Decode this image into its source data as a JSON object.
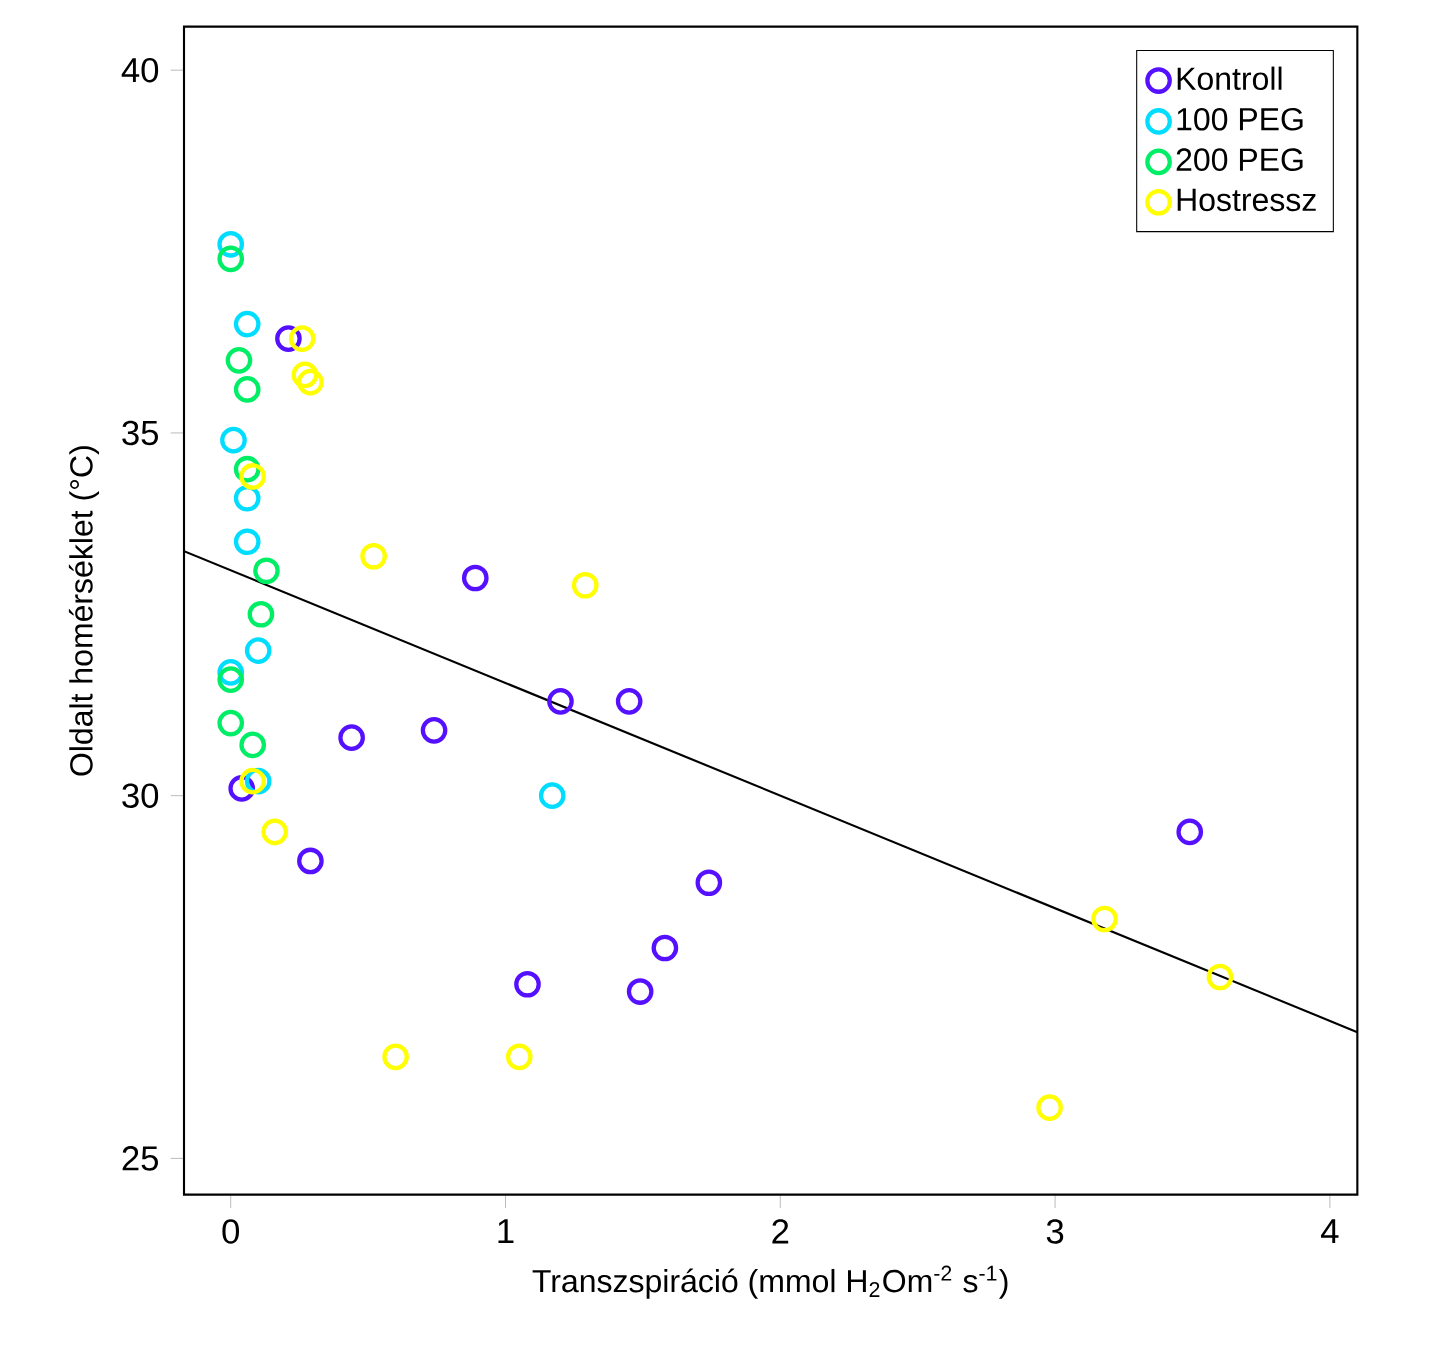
{
  "chart_data": {
    "type": "scatter",
    "xlabel": "Transzspiráció (mmol H$_{2}$Om$^{-2}$ s$^{-1}$)",
    "ylabel": "Oldalt homérséklet (°C)",
    "xlim": [
      -0.17,
      4.1
    ],
    "ylim": [
      24.5,
      40.6
    ],
    "xticks": [
      0,
      1,
      2,
      3,
      4
    ],
    "yticks": [
      25,
      30,
      35,
      40
    ],
    "grid": false,
    "legend": "top right",
    "marker": "circle",
    "series": [
      {
        "name": "Kontroll",
        "color": "#5511ff",
        "x": [
          0.21,
          0.89,
          1.2,
          1.45,
          0.44,
          0.74,
          0.04,
          0.29,
          3.49,
          1.74,
          1.58,
          1.08,
          1.49
        ],
        "values": [
          36.3,
          33.0,
          31.3,
          31.3,
          30.8,
          30.9,
          30.1,
          29.1,
          29.5,
          28.8,
          27.9,
          27.4,
          27.3
        ]
      },
      {
        "name": "100 PEG",
        "color": "#00ddff",
        "x": [
          0.0,
          0.06,
          0.01,
          0.06,
          0.06,
          0.1,
          0.0,
          0.1,
          1.17
        ],
        "values": [
          37.6,
          36.5,
          34.9,
          34.1,
          33.5,
          32.0,
          31.7,
          30.2,
          30.0
        ]
      },
      {
        "name": "200 PEG",
        "color": "#00ee66",
        "x": [
          0.0,
          0.03,
          0.06,
          0.06,
          0.13,
          0.11,
          0.0,
          0.0,
          0.08
        ],
        "values": [
          37.4,
          36.0,
          35.6,
          34.5,
          33.1,
          32.5,
          31.6,
          31.0,
          30.7
        ]
      },
      {
        "name": "Hostressz",
        "color": "#ffff00",
        "x": [
          0.26,
          0.27,
          0.29,
          0.08,
          0.52,
          1.29,
          0.08,
          0.16,
          0.6,
          1.05,
          3.18,
          3.6,
          2.98
        ],
        "values": [
          36.3,
          35.8,
          35.7,
          34.4,
          33.3,
          32.9,
          30.2,
          29.5,
          26.4,
          26.4,
          28.3,
          27.5,
          25.7
        ]
      },
      {
        "type": "line",
        "color": "#000000",
        "marker": "none",
        "x": [
          -0.17,
          4.1
        ],
        "values": [
          33.37,
          26.74
        ]
      }
    ]
  }
}
